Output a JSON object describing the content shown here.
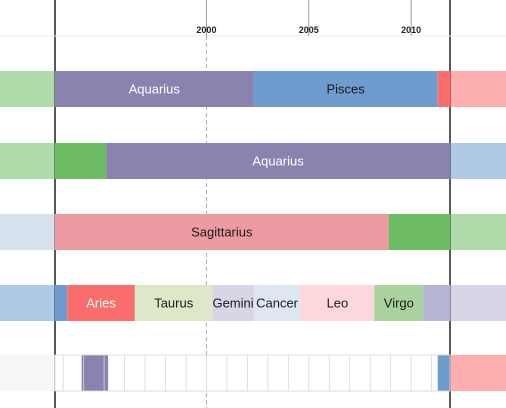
{
  "chart_data": {
    "type": "timeline",
    "x_axis": {
      "start": 1992.6,
      "end": 2011.9,
      "ticks": [
        {
          "value": 2000,
          "label": "2000"
        },
        {
          "value": 2005,
          "label": "2005"
        },
        {
          "value": 2010,
          "label": "2010"
        }
      ]
    },
    "rows": [
      {
        "segments": [
          {
            "start": 1992.6,
            "end": 2002.3,
            "label": "Aquarius",
            "color": "#8b82b0"
          },
          {
            "start": 2002.3,
            "end": 2011.3,
            "label": "Pisces",
            "color": "#6f9ccf"
          },
          {
            "start": 2011.3,
            "end": 2011.9,
            "label": "",
            "color": "#fb6c6c"
          }
        ],
        "overflow_left": {
          "color": "#6dbb62"
        },
        "overflow_right": {
          "color": "#fb6c6c"
        }
      },
      {
        "segments": [
          {
            "start": 1992.6,
            "end": 1995.1,
            "label": "",
            "color": "#6dbb62"
          },
          {
            "start": 1995.1,
            "end": 2011.9,
            "label": "Aquarius",
            "color": "#8b82b0"
          }
        ],
        "overflow_left": {
          "color": "#6dbb62"
        },
        "overflow_right": {
          "color": "#6f9ccf"
        }
      },
      {
        "segments": [
          {
            "start": 1992.6,
            "end": 2008.9,
            "label": "Sagittarius",
            "color": "#ee9aa2"
          },
          {
            "start": 2008.9,
            "end": 2011.9,
            "label": "",
            "color": "#6dbb62"
          }
        ],
        "overflow_left": {
          "color": "#b7c8df"
        },
        "overflow_right": {
          "color": "#6dbb62"
        }
      },
      {
        "segments": [
          {
            "start": 1992.6,
            "end": 1993.2,
            "label": "",
            "color": "#6f9ccf"
          },
          {
            "start": 1993.2,
            "end": 1996.5,
            "label": "Aries",
            "color": "#fb6c6c"
          },
          {
            "start": 1996.5,
            "end": 2000.3,
            "label": "Taurus",
            "color": "#dde8c9"
          },
          {
            "start": 2000.3,
            "end": 2002.3,
            "label": "Gemini",
            "color": "#d8d6e6"
          },
          {
            "start": 2002.3,
            "end": 2004.6,
            "label": "Cancer",
            "color": "#dde6f1"
          },
          {
            "start": 2004.6,
            "end": 2008.2,
            "label": "Leo",
            "color": "#fdd7d9"
          },
          {
            "start": 2008.2,
            "end": 2010.6,
            "label": "Virgo",
            "color": "#a9d29f"
          },
          {
            "start": 2010.6,
            "end": 2011.9,
            "label": "",
            "color": "#b7b5d4"
          }
        ],
        "overflow_left": {
          "color": "#6f9ccf"
        },
        "overflow_right": {
          "color": "#b7b5d4"
        }
      },
      {
        "segments": [
          {
            "start": 1992.6,
            "end": 1993.9,
            "label": "",
            "color": "#ffffff"
          },
          {
            "start": 1993.9,
            "end": 1995.2,
            "label": "",
            "color": "#8b82b0"
          },
          {
            "start": 1995.2,
            "end": 2011.3,
            "label": "",
            "color": "#ffffff"
          },
          {
            "start": 2011.3,
            "end": 2011.9,
            "label": "",
            "color": "#6f9ccf"
          }
        ],
        "year_cells": true,
        "overflow_left": {
          "color": "#f1f1f1"
        },
        "overflow_right": {
          "color": "#fb6c6c"
        }
      }
    ]
  }
}
